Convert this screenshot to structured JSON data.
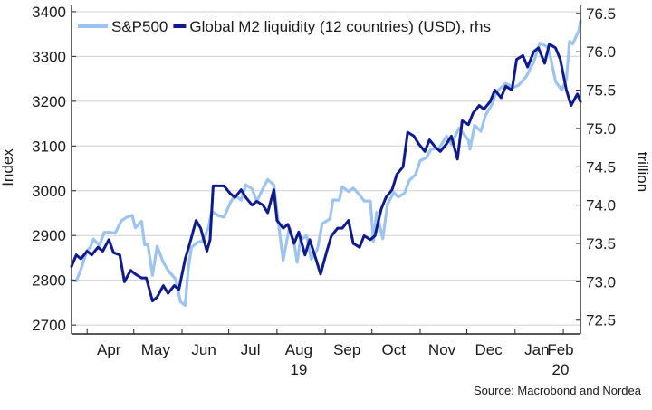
{
  "chart_data": {
    "type": "line",
    "title": "",
    "legend": {
      "placement": "top-left"
    },
    "source": "Source: Macrobond and Nordea",
    "x_axis": {
      "months": [
        "Apr",
        "May",
        "Jun",
        "Jul",
        "Aug",
        "Sep",
        "Oct",
        "Nov",
        "Dec",
        "Jan",
        "Feb"
      ],
      "year_labels": [
        {
          "month": "Aug",
          "label": "19"
        },
        {
          "month": "Feb",
          "label": "20"
        }
      ],
      "range": [
        "2019-03-22",
        "2020-02-12"
      ]
    },
    "y_axis_left": {
      "label": "Index",
      "range": [
        2680,
        3410
      ],
      "ticks": [
        "2700",
        "2800",
        "2900",
        "3000",
        "3100",
        "3200",
        "3300",
        "3400"
      ]
    },
    "y_axis_right": {
      "label": "trillion",
      "range": [
        72.32,
        76.58
      ],
      "ticks": [
        "72.5",
        "73.0",
        "73.5",
        "74.0",
        "74.5",
        "75.0",
        "75.5",
        "76.0",
        "76.5"
      ]
    },
    "grid": true,
    "series": [
      {
        "name": "S&P500",
        "axis": "left",
        "color": "#9cc4ee",
        "points": [
          [
            "2019-03-22",
            2800
          ],
          [
            "2019-03-25",
            2798
          ],
          [
            "2019-03-27",
            2815
          ],
          [
            "2019-03-29",
            2834
          ],
          [
            "2019-04-01",
            2867
          ],
          [
            "2019-04-03",
            2873
          ],
          [
            "2019-04-05",
            2892
          ],
          [
            "2019-04-09",
            2878
          ],
          [
            "2019-04-12",
            2907
          ],
          [
            "2019-04-16",
            2907
          ],
          [
            "2019-04-19",
            2905
          ],
          [
            "2019-04-23",
            2933
          ],
          [
            "2019-04-26",
            2940
          ],
          [
            "2019-04-30",
            2945
          ],
          [
            "2019-05-02",
            2917
          ],
          [
            "2019-05-06",
            2932
          ],
          [
            "2019-05-08",
            2879
          ],
          [
            "2019-05-10",
            2881
          ],
          [
            "2019-05-13",
            2811
          ],
          [
            "2019-05-16",
            2876
          ],
          [
            "2019-05-20",
            2840
          ],
          [
            "2019-05-23",
            2822
          ],
          [
            "2019-05-28",
            2802
          ],
          [
            "2019-05-31",
            2752
          ],
          [
            "2019-06-03",
            2744
          ],
          [
            "2019-06-05",
            2826
          ],
          [
            "2019-06-07",
            2873
          ],
          [
            "2019-06-11",
            2885
          ],
          [
            "2019-06-14",
            2887
          ],
          [
            "2019-06-18",
            2917
          ],
          [
            "2019-06-20",
            2954
          ],
          [
            "2019-06-24",
            2945
          ],
          [
            "2019-06-28",
            2941
          ],
          [
            "2019-07-02",
            2973
          ],
          [
            "2019-07-05",
            2990
          ],
          [
            "2019-07-09",
            2979
          ],
          [
            "2019-07-12",
            3013
          ],
          [
            "2019-07-16",
            3004
          ],
          [
            "2019-07-19",
            2976
          ],
          [
            "2019-07-23",
            3005
          ],
          [
            "2019-07-26",
            3025
          ],
          [
            "2019-07-30",
            3013
          ],
          [
            "2019-08-01",
            2953
          ],
          [
            "2019-08-05",
            2844
          ],
          [
            "2019-08-07",
            2883
          ],
          [
            "2019-08-09",
            2918
          ],
          [
            "2019-08-12",
            2883
          ],
          [
            "2019-08-14",
            2840
          ],
          [
            "2019-08-16",
            2889
          ],
          [
            "2019-08-20",
            2900
          ],
          [
            "2019-08-23",
            2847
          ],
          [
            "2019-08-27",
            2869
          ],
          [
            "2019-08-30",
            2926
          ],
          [
            "2019-09-04",
            2937
          ],
          [
            "2019-09-06",
            2979
          ],
          [
            "2019-09-10",
            2979
          ],
          [
            "2019-09-12",
            3009
          ],
          [
            "2019-09-16",
            2998
          ],
          [
            "2019-09-19",
            3006
          ],
          [
            "2019-09-23",
            2991
          ],
          [
            "2019-09-26",
            2977
          ],
          [
            "2019-09-30",
            2977
          ],
          [
            "2019-10-02",
            2887
          ],
          [
            "2019-10-04",
            2952
          ],
          [
            "2019-10-08",
            2893
          ],
          [
            "2019-10-11",
            2970
          ],
          [
            "2019-10-15",
            2996
          ],
          [
            "2019-10-18",
            2986
          ],
          [
            "2019-10-22",
            2995
          ],
          [
            "2019-10-25",
            3023
          ],
          [
            "2019-10-29",
            3036
          ],
          [
            "2019-11-01",
            3067
          ],
          [
            "2019-11-05",
            3074
          ],
          [
            "2019-11-08",
            3093
          ],
          [
            "2019-11-13",
            3094
          ],
          [
            "2019-11-18",
            3122
          ],
          [
            "2019-11-21",
            3104
          ],
          [
            "2019-11-26",
            3140
          ],
          [
            "2019-12-02",
            3113
          ],
          [
            "2019-12-03",
            3093
          ],
          [
            "2019-12-06",
            3146
          ],
          [
            "2019-12-10",
            3133
          ],
          [
            "2019-12-13",
            3169
          ],
          [
            "2019-12-17",
            3192
          ],
          [
            "2019-12-20",
            3221
          ],
          [
            "2019-12-26",
            3240
          ],
          [
            "2019-12-31",
            3231
          ],
          [
            "2020-01-03",
            3235
          ],
          [
            "2020-01-08",
            3254
          ],
          [
            "2020-01-13",
            3288
          ],
          [
            "2020-01-17",
            3330
          ],
          [
            "2020-01-22",
            3321
          ],
          [
            "2020-01-24",
            3295
          ],
          [
            "2020-01-27",
            3244
          ],
          [
            "2020-01-31",
            3225
          ],
          [
            "2020-02-03",
            3249
          ],
          [
            "2020-02-05",
            3334
          ],
          [
            "2020-02-07",
            3328
          ],
          [
            "2020-02-11",
            3358
          ],
          [
            "2020-02-12",
            3379
          ]
        ]
      },
      {
        "name": "Global M2 liquidity (12 countries) (USD), rhs",
        "axis": "right",
        "color": "#0f1a8c",
        "points": [
          [
            "2019-03-22",
            73.2
          ],
          [
            "2019-03-25",
            73.35
          ],
          [
            "2019-03-28",
            73.3
          ],
          [
            "2019-04-01",
            73.4
          ],
          [
            "2019-04-04",
            73.35
          ],
          [
            "2019-04-08",
            73.45
          ],
          [
            "2019-04-11",
            73.4
          ],
          [
            "2019-04-15",
            73.55
          ],
          [
            "2019-04-18",
            73.38
          ],
          [
            "2019-04-22",
            73.35
          ],
          [
            "2019-04-25",
            73.0
          ],
          [
            "2019-04-29",
            73.15
          ],
          [
            "2019-05-02",
            73.1
          ],
          [
            "2019-05-06",
            73.05
          ],
          [
            "2019-05-09",
            73.05
          ],
          [
            "2019-05-13",
            72.75
          ],
          [
            "2019-05-16",
            72.8
          ],
          [
            "2019-05-20",
            72.95
          ],
          [
            "2019-05-23",
            72.85
          ],
          [
            "2019-05-27",
            72.95
          ],
          [
            "2019-05-30",
            72.9
          ],
          [
            "2019-06-03",
            73.3
          ],
          [
            "2019-06-06",
            73.5
          ],
          [
            "2019-06-10",
            73.8
          ],
          [
            "2019-06-13",
            73.7
          ],
          [
            "2019-06-17",
            73.4
          ],
          [
            "2019-06-19",
            73.55
          ],
          [
            "2019-06-21",
            74.25
          ],
          [
            "2019-06-25",
            74.25
          ],
          [
            "2019-06-28",
            74.25
          ],
          [
            "2019-07-02",
            74.15
          ],
          [
            "2019-07-05",
            74.1
          ],
          [
            "2019-07-09",
            74.2
          ],
          [
            "2019-07-12",
            74.1
          ],
          [
            "2019-07-16",
            74.0
          ],
          [
            "2019-07-19",
            74.05
          ],
          [
            "2019-07-23",
            74.0
          ],
          [
            "2019-07-26",
            73.9
          ],
          [
            "2019-07-30",
            74.2
          ],
          [
            "2019-08-01",
            73.8
          ],
          [
            "2019-08-05",
            73.7
          ],
          [
            "2019-08-08",
            73.75
          ],
          [
            "2019-08-12",
            73.5
          ],
          [
            "2019-08-15",
            73.65
          ],
          [
            "2019-08-19",
            73.35
          ],
          [
            "2019-08-22",
            73.55
          ],
          [
            "2019-08-26",
            73.3
          ],
          [
            "2019-08-29",
            73.1
          ],
          [
            "2019-09-02",
            73.4
          ],
          [
            "2019-09-05",
            73.6
          ],
          [
            "2019-09-09",
            73.7
          ],
          [
            "2019-09-12",
            73.7
          ],
          [
            "2019-09-16",
            73.8
          ],
          [
            "2019-09-19",
            73.5
          ],
          [
            "2019-09-23",
            73.45
          ],
          [
            "2019-09-26",
            73.6
          ],
          [
            "2019-09-30",
            73.55
          ],
          [
            "2019-10-03",
            73.6
          ],
          [
            "2019-10-07",
            73.95
          ],
          [
            "2019-10-10",
            74.1
          ],
          [
            "2019-10-14",
            74.2
          ],
          [
            "2019-10-17",
            74.4
          ],
          [
            "2019-10-21",
            74.5
          ],
          [
            "2019-10-24",
            74.95
          ],
          [
            "2019-10-28",
            74.9
          ],
          [
            "2019-10-31",
            74.8
          ],
          [
            "2019-11-04",
            74.7
          ],
          [
            "2019-11-07",
            74.85
          ],
          [
            "2019-11-11",
            74.75
          ],
          [
            "2019-11-14",
            74.7
          ],
          [
            "2019-11-18",
            74.8
          ],
          [
            "2019-11-21",
            74.9
          ],
          [
            "2019-11-25",
            74.6
          ],
          [
            "2019-11-28",
            75.1
          ],
          [
            "2019-12-02",
            75.05
          ],
          [
            "2019-12-05",
            75.2
          ],
          [
            "2019-12-09",
            75.3
          ],
          [
            "2019-12-12",
            75.25
          ],
          [
            "2019-12-16",
            75.35
          ],
          [
            "2019-12-19",
            75.5
          ],
          [
            "2019-12-23",
            75.4
          ],
          [
            "2019-12-26",
            75.55
          ],
          [
            "2019-12-30",
            75.5
          ],
          [
            "2020-01-02",
            75.9
          ],
          [
            "2020-01-06",
            75.95
          ],
          [
            "2020-01-09",
            75.8
          ],
          [
            "2020-01-13",
            76.0
          ],
          [
            "2020-01-16",
            76.05
          ],
          [
            "2020-01-20",
            75.85
          ],
          [
            "2020-01-23",
            76.1
          ],
          [
            "2020-01-27",
            76.05
          ],
          [
            "2020-01-30",
            75.9
          ],
          [
            "2020-02-03",
            75.5
          ],
          [
            "2020-02-06",
            75.3
          ],
          [
            "2020-02-10",
            75.45
          ],
          [
            "2020-02-12",
            75.35
          ]
        ]
      }
    ]
  }
}
